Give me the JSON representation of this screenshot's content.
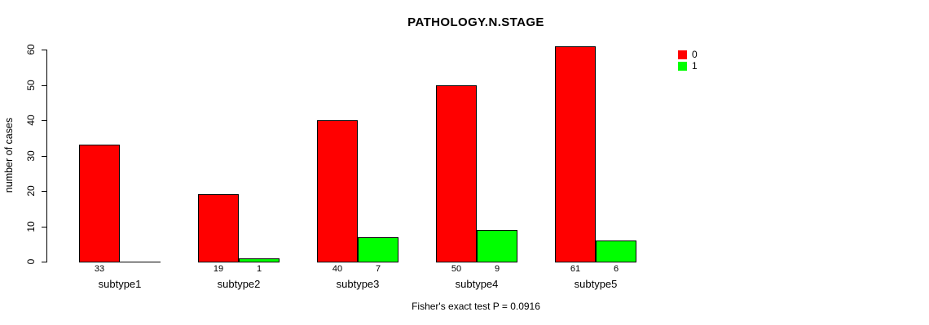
{
  "title": "PATHOLOGY.N.STAGE",
  "chart_data": {
    "type": "bar",
    "title": "PATHOLOGY.N.STAGE",
    "ylabel": "number of cases",
    "xlabel": "",
    "ylim": [
      0,
      60
    ],
    "yticks": [
      0,
      10,
      20,
      30,
      40,
      50,
      60
    ],
    "categories": [
      "subtype1",
      "subtype2",
      "subtype3",
      "subtype4",
      "subtype5"
    ],
    "series": [
      {
        "name": "0",
        "color": "#ff0000",
        "values": [
          33,
          19,
          40,
          50,
          61
        ],
        "value_labels": [
          "33",
          "19",
          "40",
          "50",
          "61"
        ]
      },
      {
        "name": "1",
        "color": "#00ff00",
        "values": [
          0,
          1,
          7,
          9,
          6
        ],
        "value_labels": [
          "",
          "1",
          "7",
          "9",
          "6"
        ]
      }
    ],
    "legend": [
      {
        "label": "0",
        "color": "#ff0000"
      },
      {
        "label": "1",
        "color": "#00ff00"
      }
    ],
    "legend_position": "top-right",
    "grid": false,
    "annotation": "Fisher's exact test P = 0.0916",
    "axis_color": "#000000",
    "background": "#ffffff"
  }
}
